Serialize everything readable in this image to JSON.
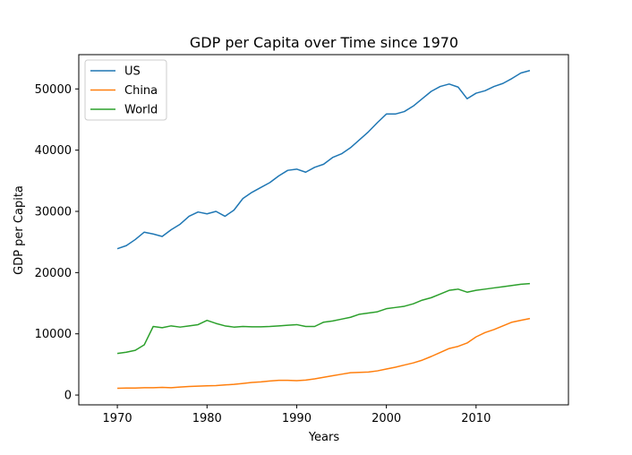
{
  "chart_data": {
    "type": "line",
    "title": "GDP per Capita over Time since 1970",
    "xlabel": "Years",
    "ylabel": "GDP per Capita",
    "xlim": [
      1965.7,
      2020.3
    ],
    "ylim": [
      -1600,
      55600
    ],
    "xticks": [
      1970,
      1980,
      1990,
      2000,
      2010
    ],
    "yticks": [
      0,
      10000,
      20000,
      30000,
      40000,
      50000
    ],
    "grid": false,
    "legend_position": "top-left",
    "x": [
      1970,
      1971,
      1972,
      1973,
      1974,
      1975,
      1976,
      1977,
      1978,
      1979,
      1980,
      1981,
      1982,
      1983,
      1984,
      1985,
      1986,
      1987,
      1988,
      1989,
      1990,
      1991,
      1992,
      1993,
      1994,
      1995,
      1996,
      1997,
      1998,
      1999,
      2000,
      2001,
      2002,
      2003,
      2004,
      2005,
      2006,
      2007,
      2008,
      2009,
      2010,
      2011,
      2012,
      2013,
      2014,
      2015,
      2016
    ],
    "series": [
      {
        "name": "US",
        "color": "#1f77b4",
        "values": [
          23900,
          24400,
          25400,
          26600,
          26300,
          25900,
          27000,
          27900,
          29200,
          29900,
          29600,
          30000,
          29200,
          30200,
          32100,
          33100,
          33900,
          34700,
          35800,
          36700,
          36900,
          36400,
          37200,
          37700,
          38800,
          39400,
          40400,
          41700,
          43000,
          44500,
          45900,
          45900,
          46300,
          47200,
          48400,
          49600,
          50400,
          50800,
          50300,
          48400,
          49300,
          49700,
          50400,
          50900,
          51700,
          52600,
          53000
        ]
      },
      {
        "name": "China",
        "color": "#ff7f0e",
        "values": [
          1100,
          1150,
          1150,
          1200,
          1200,
          1250,
          1200,
          1300,
          1400,
          1450,
          1500,
          1550,
          1650,
          1750,
          1900,
          2050,
          2150,
          2300,
          2400,
          2400,
          2350,
          2450,
          2650,
          2900,
          3150,
          3400,
          3650,
          3700,
          3750,
          3950,
          4250,
          4550,
          4900,
          5250,
          5700,
          6300,
          6950,
          7600,
          7950,
          8500,
          9500,
          10200,
          10700,
          11300,
          11900,
          12200,
          12500
        ]
      },
      {
        "name": "World",
        "color": "#2ca02c",
        "values": [
          6800,
          7000,
          7300,
          8200,
          11200,
          11000,
          11300,
          11100,
          11300,
          11500,
          12200,
          11700,
          11300,
          11100,
          11200,
          11150,
          11150,
          11200,
          11300,
          11400,
          11500,
          11200,
          11200,
          11900,
          12100,
          12400,
          12700,
          13200,
          13400,
          13600,
          14100,
          14300,
          14500,
          14900,
          15500,
          15900,
          16500,
          17100,
          17300,
          16800,
          17100,
          17300,
          17500,
          17700,
          17900,
          18100,
          18200
        ]
      }
    ]
  }
}
